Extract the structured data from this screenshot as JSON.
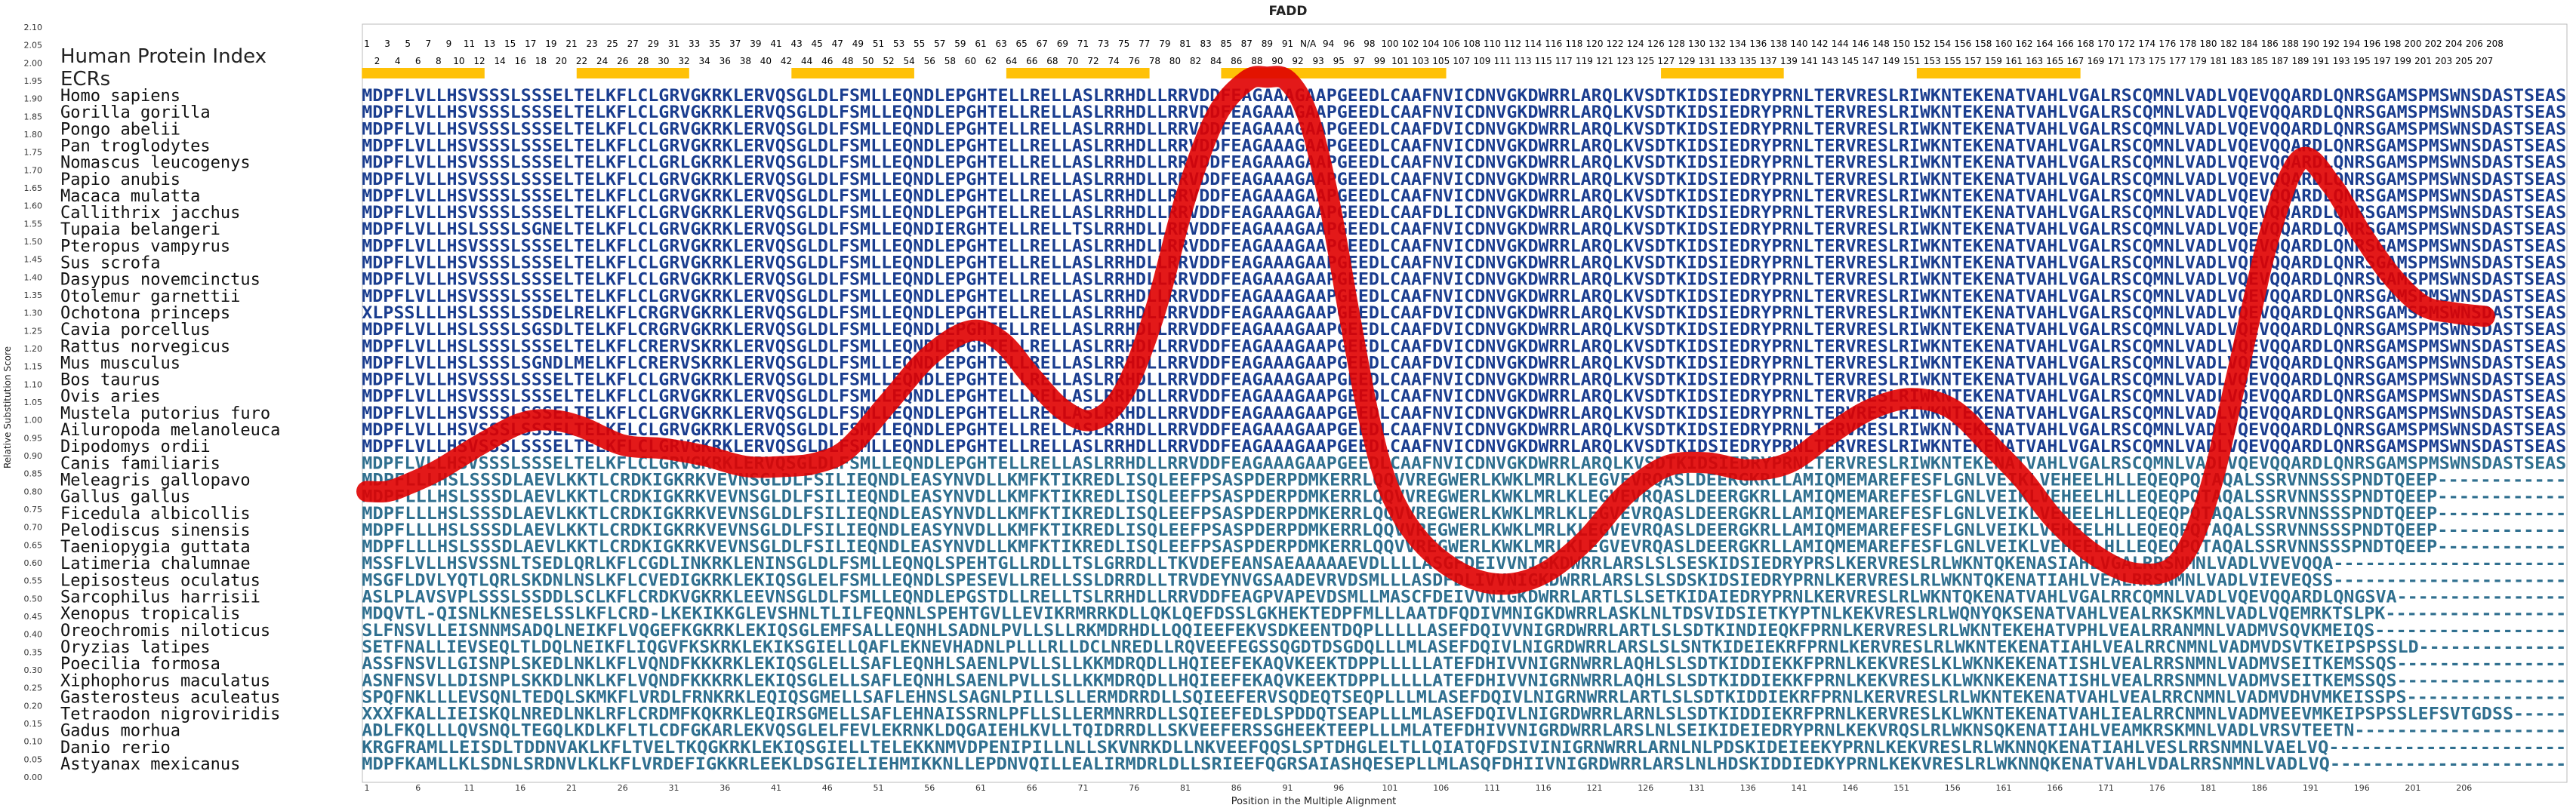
{
  "chart_data": {
    "type": "line",
    "title": "FADD",
    "xlabel": "Position in the Multiple Alignment",
    "ylabel": "Relative Substitution Score",
    "xlim": [
      1,
      209
    ],
    "ylim": [
      0,
      2.1
    ],
    "y_ticks": [
      "0.00",
      "0.05",
      "0.10",
      "0.15",
      "0.20",
      "0.25",
      "0.30",
      "0.35",
      "0.40",
      "0.45",
      "0.50",
      "0.55",
      "0.60",
      "0.65",
      "0.70",
      "0.75",
      "0.80",
      "0.85",
      "0.90",
      "0.95",
      "1.00",
      "1.05",
      "1.10",
      "1.15",
      "1.20",
      "1.25",
      "1.30",
      "1.35",
      "1.40",
      "1.45",
      "1.50",
      "1.55",
      "1.60",
      "1.65",
      "1.70",
      "1.75",
      "1.80",
      "1.85",
      "1.90",
      "1.95",
      "2.00",
      "2.05",
      "2.10"
    ],
    "x_ticks": [
      "1",
      "6",
      "11",
      "16",
      "21",
      "26",
      "31",
      "36",
      "41",
      "46",
      "51",
      "56",
      "61",
      "66",
      "71",
      "76",
      "81",
      "86",
      "91",
      "96",
      "101",
      "106",
      "111",
      "116",
      "121",
      "126",
      "131",
      "136",
      "141",
      "146",
      "151",
      "156",
      "161",
      "166",
      "171",
      "176",
      "181",
      "186",
      "191",
      "196",
      "201",
      "206"
    ],
    "hpi_label": "Human Protein Index",
    "hpi_odd": [
      "1",
      "3",
      "5",
      "7",
      "9",
      "11",
      "13",
      "15",
      "17",
      "19",
      "21",
      "23",
      "25",
      "27",
      "29",
      "31",
      "33",
      "35",
      "37",
      "39",
      "41",
      "43",
      "45",
      "47",
      "49",
      "51",
      "53",
      "55",
      "57",
      "59",
      "61",
      "63",
      "65",
      "67",
      "69",
      "71",
      "73",
      "75",
      "77",
      "79",
      "81",
      "83",
      "85",
      "87",
      "89",
      "91",
      "N/A",
      "94",
      "96",
      "98",
      "100",
      "102",
      "104",
      "106",
      "108",
      "110",
      "112",
      "114",
      "116",
      "118",
      "120",
      "122",
      "124",
      "126",
      "128",
      "130",
      "132",
      "134",
      "136",
      "138",
      "140",
      "142",
      "144",
      "146",
      "148",
      "150",
      "152",
      "154",
      "156",
      "158",
      "160",
      "162",
      "164",
      "166",
      "168",
      "170",
      "172",
      "174",
      "176",
      "178",
      "180",
      "182",
      "184",
      "186",
      "188",
      "190",
      "192",
      "194",
      "196",
      "198",
      "200",
      "202",
      "204",
      "206",
      "208"
    ],
    "hpi_even": [
      "2",
      "4",
      "6",
      "8",
      "10",
      "12",
      "14",
      "16",
      "18",
      "20",
      "22",
      "24",
      "26",
      "28",
      "30",
      "32",
      "34",
      "36",
      "38",
      "40",
      "42",
      "44",
      "46",
      "48",
      "50",
      "52",
      "54",
      "56",
      "58",
      "60",
      "62",
      "64",
      "66",
      "68",
      "70",
      "72",
      "74",
      "76",
      "78",
      "80",
      "82",
      "84",
      "86",
      "88",
      "90",
      "92",
      "93",
      "95",
      "97",
      "99",
      "101",
      "103",
      "105",
      "107",
      "109",
      "111",
      "113",
      "115",
      "117",
      "119",
      "121",
      "123",
      "125",
      "127",
      "129",
      "131",
      "133",
      "135",
      "137",
      "139",
      "141",
      "143",
      "145",
      "147",
      "149",
      "151",
      "153",
      "155",
      "157",
      "159",
      "161",
      "163",
      "165",
      "167",
      "169",
      "171",
      "173",
      "175",
      "177",
      "179",
      "181",
      "183",
      "185",
      "187",
      "189",
      "191",
      "193",
      "195",
      "197",
      "199",
      "201",
      "203",
      "205",
      "207"
    ],
    "ecr_label": "ECRs",
    "ecr_regions": [
      [
        1,
        12
      ],
      [
        22,
        32
      ],
      [
        43,
        54
      ],
      [
        64,
        77
      ],
      [
        85,
        106
      ],
      [
        128,
        139
      ],
      [
        153,
        168
      ]
    ],
    "ecr_color": "#FFC107",
    "line_color": "#E00000",
    "species": [
      "Homo sapiens",
      "Gorilla gorilla",
      "Pongo abelii",
      "Pan troglodytes",
      "Nomascus leucogenys",
      "Papio anubis",
      "Macaca mulatta",
      "Callithrix jacchus",
      "Tupaia belangeri",
      "Pteropus vampyrus",
      "Sus scrofa",
      "Dasypus novemcinctus",
      "Otolemur garnettii",
      "Ochotona princeps",
      "Cavia porcellus",
      "Rattus norvegicus",
      "Mus musculus",
      "Bos taurus",
      "Ovis aries",
      "Mustela putorius furo",
      "Ailuropoda melanoleuca",
      "Dipodomys ordii",
      "Canis familiaris",
      "Meleagris gallopavo",
      "Gallus gallus",
      "Ficedula albicollis",
      "Pelodiscus sinensis",
      "Taeniopygia guttata",
      "Latimeria chalumnae",
      "Lepisosteus oculatus",
      "Sarcophilus harrisii",
      "Xenopus tropicalis",
      "Oreochromis niloticus",
      "Oryzias latipes",
      "Poecilia formosa",
      "Xiphophorus maculatus",
      "Gasterosteus aculeatus",
      "Tetraodon nigroviridis",
      "Gadus morhua",
      "Danio rerio",
      "Astyanax mexicanus"
    ],
    "sequences": [
      "MDPFLVLLHSVSSSLSSSELTELKFLCLGRVGKRKLERVQSGLDLFSMLLEQNDLEPGHTELLRELLASLRRHDLLRRVDDFEAGAAAGAAPGEEDLCAAFNVICDNVGKDWRRLARQLKVSDTKIDSIEDRYPRNLTERVRESLRIWKNTEKENATVAHLVGALRSCQMNLVADLVQEVQQARDLQNRSGAMSPMSWNSDASTSEAS",
      "MDPFLVLLHSVSSSLSSSELTELKFLCLGRVGKRKLERVQSGLDLFSMLLEQNDLEPGHTELLRELLASLRRHDLLRRVDDFEAGAAAGAAPGEEDLCAAFNVICDNVGKDWRRLARQLKVSDTKIDSIEDRYPRNLTERVRESLRIWKNTEKENATVAHLVGALRSCQMNLVADLVQEVQQARDLQNRSGAMSPMSWNSDASTSEAS",
      "MDPFLVLLHSVSSSLSSSELTELKFLCLGRVGKRKLERVQSGLDLFSMLLEQNDLEPGHTELLRELLASLRRHDLLRRVDDFEAGAAAGAAPGEEDLCAAFDVICDNVGKDWRRLARQLKVSDTKIDSIEDRYPRNLTERVRESLRIWKNTEKENATVAHLVGALRSCQMNLVADLVQEVQQARDLQNRSGAMSPMSWNSDASTSEAS",
      "MDPFLVLLHSVSSSLSSSELTELKFLCLGRVGKRKLERVQSGLDLFSMLLEQNDLEPGHTELLRELLASLRRHDLLRRVDDFEAGAAAGAAPGEEDLCAAFNVICDNVGKDWRRLARQLKVSDTKIDSIEDRYPRNLTERVRESLRIWKNTEKENATVAHLVGALRSCQMNLVADLVQEVQQARDLQNRSGAMSPMSWNSDASTSEAS",
      "MDPFLVLLHSVSSSLSSSELTELKFLCLGRLGKRKLERVQSGLDLFSMLLEQNDLEPGHTELLRELLASLRRHDLLRRVDDFEAGAAAGAAPGEEDLCAAFNVICDNVGKDWRRLARQLKVSDTKIDSIEDRYPRNLTERVRESLRIWKNTEKENATVAHLVGALRSCQMNLVADLVQEVQQARDLQNRSGAMSPMSWNSDASTSEAS",
      "MDPFLVLLHSVSSSLSSSELTELKFLCLGRVGKRKLERVQSGLDLFSMLLEQNDLEPGHTELLRELLASLRRHDLLRRVDDFEAGAAAGAAPGEEDLCAAFNVICDNVGKDWRRLARQLKVSDTKIDSIEDRYPRNLTERVRESLRIWKNTEKENATVAHLVGALRSCQMNLVADLVQEVQQARDLQNRSGAMSPMSWNSDASTSEAS",
      "MDPFLVLLHSVSSSLSSSELTELKFLCLGRVGKRKLERVQSGLDLFSMLLEQNDLEPGHTELLRELLASLRRHDLLRRVDDFEAGAAAGAAPGEEDLCAAFNVICDNVGKDWRRLARQLKVSDTKIDSIEDRYPRNLTERVRESLRIWKNTEKENATVAHLVGALRSCQMNLVADLVQEVQQARDLQNRSGAMSPMSWNSDASTSEAS",
      "MDPFLVLLHSVSSSLSSSELTELKFLCLGRVGKRKLERVQSGLDLFSMLLEQNDLEPGHTELLRELLASLRRHDLLRRVDDFEAGAAAGAAPGEEDLCAAFDLICDNVGKDWRRLARQLKVSDTKIDSIEDRYPRNLTERVRESLRIWKNTEKENATVAHLVGALRSCQMNLVADLVQEVQQARDLQNRSGAMSPMSWNSDASTSEAS",
      "MDPFLVLLHSLSSSLSGNELTELKFLCLGRVGKRKLERVQSGLDLFSMLLEQNDIERGHTELLRELLTSLRRHDLLRRVDDFEAGAAAGAAPGEEDLCAAFNVICDNVGKDWRRLARQLKVSDTKIDSIEDRYPRNLTERVRESLRIWKNTEKENATVAHLVGALRSCQMNLVADLVQEVQQARDLQNRSGAMSPMSWNSDASTSEAS",
      "MDPFLVLLHSVSSSLSSSELTELKFLCLGRVGKRKLERVQSGLDLFSMLLEQNDLEPGHTELLRELLASLRRHDLLRRVDDFEAGAAAGAAPGEEDLCAAFNVICDNVGKDWRRLARQLKVSDTKIDSIEDRYPRNLTERVRESLRIWKNTEKENATVAHLVGALRSCQMNLVADLVQEVQQARDLQNRSGAMSPMSWNSDASTSEAS",
      "MDPFLVLLHSVSSSLSSSELTELKFLCLGRVGKRKLERVQSGLDLFSMLLEQNDLEPGHTELLRELLASLRRHDLLRRVDDFEAGAAAGAAPGEEDLCAAFNVICDNVGKDWRRLARQLKVSDTKIDSIEDRYPRNLTERVRESLRIWKNTEKENATVAHLVGALRSCQMNLVADLVQEVQQARDLQNRSGAMSPMSWNSDASTSEAS",
      "MDPFLVLLHSVSSSLSSSELTELKFLCLGRVGKRKLERVQSGLDLFSMLLEQNDLEPGHTELLRELLASLRRHDLLRRVDDFEAGAAAGAAPGEEDLCAAFNVICDNVGKDWRRLARQLKVSDTKIDSIEDRYPRNLTERVRESLRIWKNTEKENATVAHLVGALRSCQMNLVADLVQEVQQARDLQNRSGAMSPMSWNSDASTSEAS",
      "MDPFLVLLHSVSSSLSSSELTELKFLCLGRVGKRKLERVQSGLDLFSMLLEQNDLEPGHTELLRELLASLRRHDLLRRVDDFEAGAAAGAAPGEEDLCAAFNVICDNVGKDWRRLARQLKVSDTKIDSIEDRYPRNLTERVRESLRIWKNTEKENATVAHLVGALRSCQMNLVADLVQEVQQARDLQNRSGAMSPMSWNSDASTSEAS",
      "XLPSSLLLHSLSSSLSSDELRELKFLCRGRVGKRKLERVQSGLDLFSMLLEQNDLEPGHTELLRELLASLRRHDLLRRVDDFEAGAAAGAAPGEEDLCAAFDVICDNVGKDWRRLARQLKVSDTKIDSIEDRYPRNLTERVRESLRIWKNTEKENATVAHLVGALRSCQMNLVADLVQEVQQARDLQNRSGAMSPMSWNSDASTSEAS",
      "MDPFLVLLHSLSSSLSGSDLTELKFLCRGRVGKRKLERVQSGLDLFSMLLEQNDLEPGHTELLRELLASLRRHDLLRRVDDFEAGAAAGAAPGEEDLCAAFDVICDNVGKDWRRLARQLKVSDTKIDSIEDRYPRNLTERVRESLRIWKNTEKENATVAHLVGALRSCQMNLVADLVQEVQQARDLQNRSGAMSPMSWNSDASTSEAS",
      "MDPFLVLLHSLSSSLSSSELTELKFLCRERVSKRKLERVQSGLDLFSMLLEQNDLEPGHTELLRELLASLRRHDLLRRVDDFEAGAAAGAAPGEEDLCAAFDVICDNVGKDWRRLARQLKVSDTKIDSIEDRYPRNLTERVRESLRIWKNTEKENATVAHLVGALRSCQMNLVADLVQEVQQARDLQNRSGAMSPMSWNSDASTSEAS",
      "MDPFLVLLHSLSSSLSGNDLMELKFLCRERVSKRKLERVQSGLDLFSMLLEQNDLEPGHTELLRELLASLRRHDLLRRVDDFEAGAAAGAAPGEEDLCAAFDVICDNVGKDWRRLARQLKVSDTKIDSIEDRYPRNLTERVRESLRIWKNTEKENATVAHLVGALRSCQMNLVADLVQEVQQARDLQNRSGAMSPMSWNSDASTSEAS",
      "MDPFLVLLHSVSSSLSSSELTELKFLCLGRVGKRKLERVQSGLDLFSMLLEQNDLEPGHTELLRELLASLRRHDLLRRVDDFEAGAAAGAAPGEEDLCAAFNVICDNVGKDWRRLARQLKVSDTKIDSIEDRYPRNLTERVRESLRIWKNTEKENATVAHLVGALRSCQMNLVADLVQEVQQARDLQNRSGAMSPMSWNSDASTSEAS",
      "MDPFLVLLHSVSSSLSSSELTELKFLCLGRVGKRKLERVQSGLDLFSMLLEQNDLEPGHTELLRELLASLRRHDLLRRVDDFEAGAAAGAAPGEEDLCAAFNVICDNVGKDWRRLARQLKVSDTKIDSIEDRYPRNLTERVRESLRIWKNTEKENATVAHLVGALRSCQMNLVADLVQEVQQARDLQNRSGAMSPMSWNSDASTSEAS",
      "MDPFLVLLHSVSSSLSSSELTELKFLCLGRVGKRKLERVQSGLDLFSMLLEQNDLEPGHTELLRELLASLRRHDLLRRVDDFEAGAAAGAAPGEEDLCAAFNVICDNVGKDWRRLARQLKVSDTKIDSIEDRYPRNLTERVRESLRIWKNTEKENATVAHLVGALRSCQMNLVADLVQEVQQARDLQNRSGAMSPMSWNSDASTSEAS",
      "MDPFLVLLHSVSSSLSSSELTELKFLCLGRVGKRKLERVQSGLDLFSMLLEQNDLEPGHTELLRELLASLRRHDLLRRVDDFEAGAAAGAAPGEEDLCAAFNVICDNVGKDWRRLARQLKVSDTKIDSIEDRYPRNLTERVRESLRIWKNTEKENATVAHLVGALRSCQMNLVADLVQEVQQARDLQNRSGAMSPMSWNSDASTSEAS",
      "MDPFLVLLHSVSSSLSSSELTELKFLCLGRVGKRKLERVQSGLDLFSMLLEQNDLEPGHTELLRELLASLRRHDLLRRVDDFEAGAAAGAAPGEEDLCAAFNVICDNVGKDWRRLARQLKVSDTKIDSIEDRYPRNLTERVRESLRIWKNTEKENATVAHLVGALRSCQMNLVADLVQEVQQARDLQNRSGAMSPMSWNSDASTSEAS",
      "MDPFLVLLHSVSSSLSSSELTELKFLCLGRVGKRKLERVQSGLDLFSMLLEQNDLEPGHTELLRELLASLRRHDLLRRVDDFEAGAAAGAAPGEEDLCAAFNVICDNVGKDWRRLARQLKVSDTKIDSIEDRYPRNLTERVRESLRIWKNTEKENATVAHLVGALRSCQMNLVADLVQEVQQARDLQNRSGAMSPMSWNSDASTSEAS",
      "MDPFLLLHSLSSSDLAEVLKKTLCRDKIGKRKVEVNSGLDLFSILIEQNDLEASYNVDLLKMFKTIKREDLISQLEEFPSASPDERPDMKERRLQQVVREGWERLKWKLMRLKLEGVEVRQASLDEERGKRLLAMIQMEMAREFESFLGNLVEIKLVEHEELHLLEQEQPQTAQALSSRVNNSSSPNDTQEEP------------",
      "MDPFLLLHSLSSSDLAEVLKKTLCRDKIGKRKVEVNSGLDLFSILIEQNDLEASYNVDLLKMFKTIKREDLISQLEEFPSASPDERPDMKERRLQQVVREGWERLKWKLMRLKLEGVEVRQASLDEERGKRLLAMIQMEMAREFESFLGNLVEIKLVEHEELHLLEQEQPQTAQALSSRVNNSSSPNDTQEEP------------",
      "MDPFLLLHSLSSSDLAEVLKKTLCRDKIGKRKVEVNSGLDLFSILIEQNDLEASYNVDLLKMFKTIKREDLISQLEEFPSASPDERPDMKERRLQQVVREGWERLKWKLMRLKLEGVEVRQASLDEERGKRLLAMIQMEMAREFESFLGNLVEIKLVEHEELHLLEQEQPQTAQALSSRVNNSSSPNDTQEEP------------",
      "MDPFLLLHSLSSSDLAEVLKKTLCRDKIGKRKVEVNSGLDLFSILIEQNDLEASYNVDLLKMFKTIKREDLISQLEEFPSASPDERPDMKERRLQQVVREGWERLKWKLMRLKLEGVEVRQASLDEERGKRLLAMIQMEMAREFESFLGNLVEIKLVEHEELHLLEQEQPQTAQALSSRVNNSSSPNDTQEEP------------",
      "MDPFLLLHSLSSSDLAEVLKKTLCRDKIGKRKVEVNSGLDLFSILIEQNDLEASYNVDLLKMFKTIKREDLISQLEEFPSASPDERPDMKERRLQQVVREGWERLKWKLMRLKLEGVEVRQASLDEERGKRLLAMIQMEMAREFESFLGNLVEIKLVEHEELHLLEQEQPQTAQALSSRVNNSSSPNDTQEEP------------",
      "MSSFLVLLHSVSSNLTSEDLQRLKFLCGDLINKRKLENINSGLDLFSMLLEQNQLSPEHTGLLRDLLTSLGRRDLLTKVDEFEANSAEAAAAAEVDLLLLASGFDEIVVNIGKDWRRLARSLSLSESKIDSIEDRYPRSLKERVRESLRLWKNTQKENASIAHLVGALRRSNMNLVADLVVEVQQA----------------------",
      "MSGFLDVLYQTLQRLSKDNLNSLKFLCVEDIGKRKLEKIQSGLELFSMLLEQNDLSPESEVLLRELLSSLDRRDLLTRVDEYNVGSAADEVRVDSMLLLASDFDLIVVNIGKDWRRLARSLSLSDSKIDSIEDRYPRNLKERVRESLRLWKNTQKENATIAHLVEALRRSNMNLVADLVIEVEQSS----------------------",
      "ASLPLAVSVPLSSSLSSDDLSCLKFLCRDKVGKRKLEEVNSGLDLFSMLLEQNDLEPGSTDLLRELLTSLRRHDLLRRVDDFEAGPVAPEVDSMLLMASCFDEIVVNIGKDWRRLARTLSLSETKIDAIEDRYPRNLKERVRESLRLWKNTQKENATVAHLVGALRRCQMNLVADLVQEVQQARDLQNGSVA----------------",
      "MDQVTL-QISNLKNESELSSLKFLCRD-LKEKIKKGLEVSHNLTLILFEQNNLSPEHTGVLLEVIKRMRRKDLLQKLQEFDSSLGKHEKTEDPFMLLLAATDFQDIVMNIGKDWRRLASKLNLTDSVIDSIETKYPTNLKEKVRESLRLWQNYQKSENATVAHLVEALRKSKMNLVADLVQEMRKTSLPK-----------------",
      "SLFNSVLLEISNNMSADQLNEIKFLVQGEFKGKRKLEKIQSGLEMFSALLEQNHLSADNLPVLLSLLRKMDRHDLLQQIEEFEKVSDKEENTDQPLLLLLASEFDQIVVNIGRDWRRLARTLSLSDTKINDIEQKFPRNLKERVRESLRLWKNTEKEHATVPHLVEALRRANMNLVADMVSQVKMEIQS------------------",
      "SETFNALLIEVSEQLTLDQLNEIKFLIQGVFKSKRKLEKIKSGIELLQAFLEKNEVHADNLPLLLRLLDCLNREDLLRQVEEFEGSSQGDTDSGDQLLLMLASEFDQIVLNIGRDWRRLARSLSLSNTKIDEIEKRFPRNLKERVRESLRLWKNTEKENATIAHLVEALRRCNMNLVADMVDSVTKEIPSPSSLD--------------",
      "ASSFNSVLLGISNPLSKEDLNKLKFLVQNDFKKKRKLEKIQSGLELLSAFLEQNHLSAENLPVLLSLLKKMDRQDLLHQIEEFEKAQVKEEKTDPPLLLLLATEFDHIVVNIGRNWRRLAQHLSLSDTKIDDIEKKFPRNLKEKVRESLKLWKNKEKENATISHLVEALRRSNMNLVADMVSEITKEMSSQS----------------",
      "ASNFNSVLLDISNPLSKKDLNKLKFLVQNDFKKKRKLEKIQSGLELLSAFLEQNHLSAENLPVLLSLLKKMDRQDLLHQIEEFEKAQVKEEKTDPPLLLLLATEFDHIVVNIGRNWRRLAQHLSLSDTKIDDIEKKFPRNLKEKVRESLKLWKNKEKENATISHLVEALRRSNMNLVADMVSEITKEMSSQS----------------",
      "SPQFNKLLLEVSQNLTEDQLSKMKFLVRDLFRNKRKLEQIQSGMELLSAFLEHNSLSAGNLPILLSLLERMDRRDLLSQIEEFERVSQDEQTSEQPLLLMLASEFDQIVLNIGRNWRRLARTLSLSDTKIDDIEKRFPRNLKERVRESLRLWKNTEKENATVAHLVEALRRCNMNLVADMVDHVMKEISSPS---------------",
      "XXXFKALLIEISKQLNREDLNKLRFLCRDMFKQKRKLEQIRSGMELLSAFLEHNAISSRNLPFLLSLLERMNRRDLLSQIEEFEDLSPDDQTSEAPLLLMLASEFDQIVLNIGRDWRRLARNLSLSDTKIDDIEKRFPRNLKERVRESLKLWKNTEKENATVAHLIEALRRCNMNLVADMVEEVMKEIPSPSSLEFSVTGDSS-----",
      "ADLFKQLLLQVSNQLTEGQLKDLKFLTLCDFGKARLEKVQSGLELFEVLEKRNKLDQGAIEHLKVLLTQIDRRDLLSKVEEFERSSGHEEKTEEPLLLMLATEFDHIVVNIGRDWRRLARSLNLSEIKIDEIEDRYPRNLKEKVRQSLRLWKNSQKENATIAHLVEAMKRSKMNLVADLVRSVTEETN--------------------",
      "KRGFRAMLLEISDLTDDNVAKLKFLTVELTKQGKRKLEKIQSGIELLTELEKKNMVDPENIPILLNLLSKVNRKDLLNKVEEFQQSLSPTDHGLELTLLQIATQFDSIVINIGRNWRRLARNLNLPDSKIDEIEEKYPRNLKEKVRESLRLWKNNQKENATIAHLVESLRRSNMNLVAELVQ----------------------",
      "MDPFKAMLLKLSDNLSRDNVLKLKFLVRDEFIGKKRLEEKLDSGIELIEHMIKKNLLEPDNVQILLEALIRMDRLDLLSRIEEFQGRSAIASHQESEPLLMLASQFDHIIVNIGRDWRRLARSLNLHDSKIDDIEDKYPRNLKEKVRESLRLWKNNQKENATVAHLVDALRRSNMNLVADLVQ----------------------"
    ],
    "series": [
      {
        "x": [
          1,
          3,
          5,
          8,
          12,
          16,
          19,
          22,
          26,
          30,
          34,
          38,
          42,
          45,
          48,
          52,
          56,
          60,
          63,
          66,
          69,
          72,
          75,
          78,
          81,
          84,
          87,
          89,
          91,
          93,
          95,
          97,
          99,
          101,
          104,
          108,
          112,
          116,
          120,
          124,
          128,
          132,
          136,
          140,
          144,
          148,
          152,
          156,
          160,
          163,
          166,
          170,
          174,
          178,
          181,
          184,
          187,
          190,
          193,
          196,
          199,
          202,
          205,
          208
        ],
        "y": [
          0.8,
          0.8,
          0.82,
          0.86,
          0.93,
          0.99,
          1.0,
          0.98,
          0.93,
          0.92,
          0.9,
          0.87,
          0.87,
          0.88,
          0.92,
          1.05,
          1.18,
          1.25,
          1.22,
          1.12,
          1.03,
          1.0,
          1.08,
          1.3,
          1.62,
          1.85,
          1.95,
          1.96,
          1.95,
          1.85,
          1.62,
          1.3,
          1.0,
          0.8,
          0.66,
          0.57,
          0.54,
          0.57,
          0.66,
          0.79,
          0.87,
          0.88,
          0.86,
          0.88,
          0.96,
          1.03,
          1.06,
          1.03,
          0.92,
          0.83,
          0.72,
          0.62,
          0.57,
          0.6,
          0.79,
          1.15,
          1.52,
          1.73,
          1.66,
          1.52,
          1.4,
          1.32,
          1.3,
          1.29
        ]
      }
    ]
  }
}
